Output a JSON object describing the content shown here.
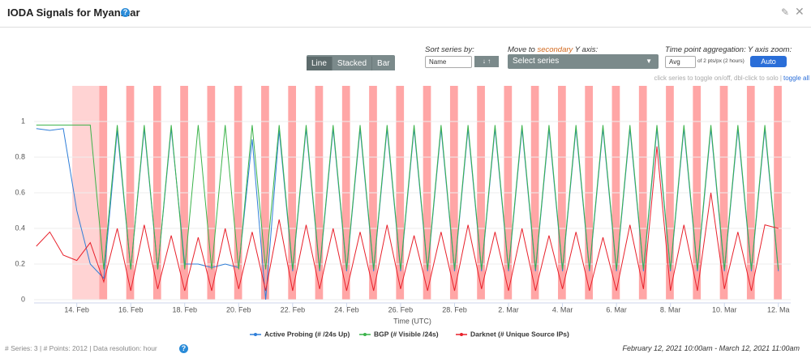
{
  "header": {
    "title": "IODA Signals for Myanmar"
  },
  "controls": {
    "view_buttons": [
      "Line",
      "Stacked",
      "Bar"
    ],
    "sort_label": "Sort series by:",
    "sort_value": "Name",
    "secondary_label": {
      "before": "Move to",
      "highlight": "secondary",
      "after": "Y axis:"
    },
    "secondary_placeholder": "Select series",
    "aggregation_label": "Time point aggregation:",
    "aggregation_value": "Avg",
    "aggregation_note": "of 2 pts/px (2 hours)",
    "yzoom_label": "Y axis zoom:",
    "yzoom_value": "Auto",
    "hint": "click series to toggle on/off, dbl-click to solo |",
    "toggle_all": "toggle all"
  },
  "chart_data": {
    "type": "line",
    "x_label": "Time (UTC)",
    "xlim": [
      "2021-02-12T10:00",
      "2021-03-12T11:00"
    ],
    "xticks": [
      {
        "value": "2021-02-14T00:00",
        "label": "14. Feb"
      },
      {
        "value": "2021-02-16T00:00",
        "label": "16. Feb"
      },
      {
        "value": "2021-02-18T00:00",
        "label": "18. Feb"
      },
      {
        "value": "2021-02-20T00:00",
        "label": "20. Feb"
      },
      {
        "value": "2021-02-22T00:00",
        "label": "22. Feb"
      },
      {
        "value": "2021-02-24T00:00",
        "label": "24. Feb"
      },
      {
        "value": "2021-02-26T00:00",
        "label": "26. Feb"
      },
      {
        "value": "2021-02-28T00:00",
        "label": "28. Feb"
      },
      {
        "value": "2021-03-02T00:00",
        "label": "2. Mar"
      },
      {
        "value": "2021-03-04T00:00",
        "label": "4. Mar"
      },
      {
        "value": "2021-03-06T00:00",
        "label": "6. Mar"
      },
      {
        "value": "2021-03-08T00:00",
        "label": "8. Mar"
      },
      {
        "value": "2021-03-10T00:00",
        "label": "10. Mar"
      },
      {
        "value": "2021-03-12T00:00",
        "label": "12. Ma"
      }
    ],
    "ylim": [
      0,
      1.2
    ],
    "yticks": [
      0,
      0.2,
      0.4,
      0.6,
      0.8,
      1
    ],
    "grid": true,
    "alert_color": "#ff8080",
    "alerts": [
      [
        "2021-02-13T20:00",
        "2021-02-14T20:00"
      ],
      [
        "2021-02-14T20:00",
        "2021-02-15T03:00"
      ],
      [
        "2021-02-15T20:00",
        "2021-02-16T03:00"
      ],
      [
        "2021-02-16T20:00",
        "2021-02-17T03:00"
      ],
      [
        "2021-02-17T20:00",
        "2021-02-18T03:00"
      ],
      [
        "2021-02-18T20:00",
        "2021-02-19T03:00"
      ],
      [
        "2021-02-19T20:00",
        "2021-02-20T03:00"
      ],
      [
        "2021-02-20T20:00",
        "2021-02-21T03:00"
      ],
      [
        "2021-02-21T20:00",
        "2021-02-22T03:00"
      ],
      [
        "2021-02-22T20:00",
        "2021-02-23T03:00"
      ],
      [
        "2021-02-23T20:00",
        "2021-02-24T03:00"
      ],
      [
        "2021-02-24T20:00",
        "2021-02-25T03:00"
      ],
      [
        "2021-02-25T20:00",
        "2021-02-26T03:00"
      ],
      [
        "2021-02-26T20:00",
        "2021-02-27T03:00"
      ],
      [
        "2021-02-27T20:00",
        "2021-02-28T03:00"
      ],
      [
        "2021-02-28T20:00",
        "2021-03-01T03:00"
      ],
      [
        "2021-03-01T20:00",
        "2021-03-02T03:00"
      ],
      [
        "2021-03-02T20:00",
        "2021-03-03T03:00"
      ],
      [
        "2021-03-03T20:00",
        "2021-03-04T03:00"
      ],
      [
        "2021-03-04T20:00",
        "2021-03-05T03:00"
      ],
      [
        "2021-03-05T20:00",
        "2021-03-06T03:00"
      ],
      [
        "2021-03-06T20:00",
        "2021-03-07T03:00"
      ],
      [
        "2021-03-07T20:00",
        "2021-03-08T03:00"
      ],
      [
        "2021-03-08T20:00",
        "2021-03-09T03:00"
      ],
      [
        "2021-03-09T20:00",
        "2021-03-10T03:00"
      ],
      [
        "2021-03-10T20:00",
        "2021-03-11T03:00"
      ],
      [
        "2021-03-11T20:00",
        "2021-03-12T03:00"
      ]
    ],
    "x": [
      "2021-02-12T12:00",
      "2021-02-13T00:00",
      "2021-02-13T12:00",
      "2021-02-14T00:00",
      "2021-02-14T12:00",
      "2021-02-15T00:00",
      "2021-02-15T12:00",
      "2021-02-16T00:00",
      "2021-02-16T12:00",
      "2021-02-17T00:00",
      "2021-02-17T12:00",
      "2021-02-18T00:00",
      "2021-02-18T12:00",
      "2021-02-19T00:00",
      "2021-02-19T12:00",
      "2021-02-20T00:00",
      "2021-02-20T12:00",
      "2021-02-21T00:00",
      "2021-02-21T12:00",
      "2021-02-22T00:00",
      "2021-02-22T12:00",
      "2021-02-23T00:00",
      "2021-02-23T12:00",
      "2021-02-24T00:00",
      "2021-02-24T12:00",
      "2021-02-25T00:00",
      "2021-02-25T12:00",
      "2021-02-26T00:00",
      "2021-02-26T12:00",
      "2021-02-27T00:00",
      "2021-02-27T12:00",
      "2021-02-28T00:00",
      "2021-02-28T12:00",
      "2021-03-01T00:00",
      "2021-03-01T12:00",
      "2021-03-02T00:00",
      "2021-03-02T12:00",
      "2021-03-03T00:00",
      "2021-03-03T12:00",
      "2021-03-04T00:00",
      "2021-03-04T12:00",
      "2021-03-05T00:00",
      "2021-03-05T12:00",
      "2021-03-06T00:00",
      "2021-03-06T12:00",
      "2021-03-07T00:00",
      "2021-03-07T12:00",
      "2021-03-08T00:00",
      "2021-03-08T12:00",
      "2021-03-09T00:00",
      "2021-03-09T12:00",
      "2021-03-10T00:00",
      "2021-03-10T12:00",
      "2021-03-11T00:00",
      "2021-03-11T12:00",
      "2021-03-12T00:00"
    ],
    "series": [
      {
        "name": "Active Probing (# /24s Up)",
        "color": "#2f7ed8",
        "values": [
          0.96,
          0.95,
          0.96,
          0.5,
          0.2,
          0.12,
          0.95,
          0.17,
          0.96,
          0.17,
          0.96,
          0.2,
          0.2,
          0.18,
          0.2,
          0.18,
          0.9,
          0.0,
          0.95,
          0.16,
          0.96,
          0.16,
          0.96,
          0.16,
          0.96,
          0.16,
          0.96,
          0.16,
          0.96,
          0.16,
          0.96,
          0.16,
          0.96,
          0.16,
          0.96,
          0.16,
          0.96,
          0.16,
          0.96,
          0.16,
          0.96,
          0.16,
          0.96,
          0.16,
          0.96,
          0.16,
          0.96,
          0.16,
          0.96,
          0.16,
          0.96,
          0.16,
          0.96,
          0.16,
          0.96,
          0.16
        ]
      },
      {
        "name": "BGP (# Visible /24s)",
        "color": "#3bb34a",
        "values": [
          0.98,
          0.98,
          0.98,
          0.98,
          0.98,
          0.17,
          0.98,
          0.17,
          0.98,
          0.17,
          0.98,
          0.17,
          0.98,
          0.17,
          0.98,
          0.17,
          0.98,
          0.17,
          0.98,
          0.17,
          0.98,
          0.17,
          0.98,
          0.17,
          0.98,
          0.17,
          0.98,
          0.17,
          0.98,
          0.17,
          0.98,
          0.17,
          0.98,
          0.17,
          0.98,
          0.17,
          0.98,
          0.17,
          0.98,
          0.17,
          0.98,
          0.17,
          0.98,
          0.17,
          0.98,
          0.17,
          0.98,
          0.17,
          0.98,
          0.17,
          0.98,
          0.17,
          0.98,
          0.17,
          0.98,
          0.17
        ]
      },
      {
        "name": "Darknet (# Unique Source IPs)",
        "color": "#e8212b",
        "values": [
          0.3,
          0.38,
          0.25,
          0.22,
          0.32,
          0.1,
          0.4,
          0.05,
          0.42,
          0.06,
          0.36,
          0.05,
          0.35,
          0.05,
          0.4,
          0.06,
          0.38,
          0.05,
          0.45,
          0.05,
          0.42,
          0.06,
          0.4,
          0.05,
          0.38,
          0.05,
          0.42,
          0.06,
          0.36,
          0.05,
          0.38,
          0.05,
          0.42,
          0.06,
          0.38,
          0.05,
          0.4,
          0.05,
          0.36,
          0.06,
          0.38,
          0.05,
          0.35,
          0.05,
          0.42,
          0.06,
          0.86,
          0.05,
          0.42,
          0.05,
          0.6,
          0.06,
          0.38,
          0.05,
          0.42,
          0.4
        ]
      }
    ]
  },
  "footer": {
    "stats": "# Series: 3 | # Points: 2012 | Data resolution: hour",
    "range": "February 12, 2021 10:00am - March 12, 2021 11:00am"
  }
}
